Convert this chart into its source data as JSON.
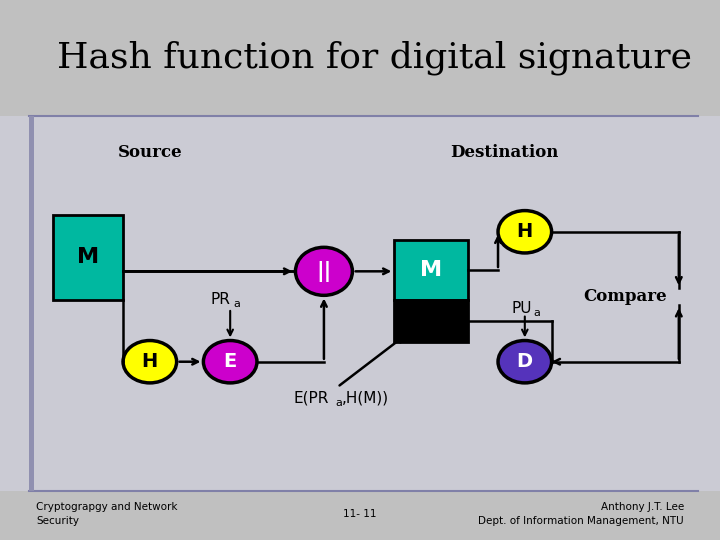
{
  "title": "Hash function for digital signature",
  "title_fontsize": 26,
  "teal": "#00b8a0",
  "yellow": "#ffff00",
  "magenta": "#cc00cc",
  "purple": "#5533bb",
  "black": "#000000",
  "white": "#ffffff",
  "footer_left": "Cryptograpgy and Network\nSecurity",
  "footer_center": "11- 11",
  "footer_right": "Anthony J.T. Lee\nDept. of Information Management, NTU",
  "source_label": "Source",
  "dest_label": "Destination",
  "compare_label": "Compare"
}
